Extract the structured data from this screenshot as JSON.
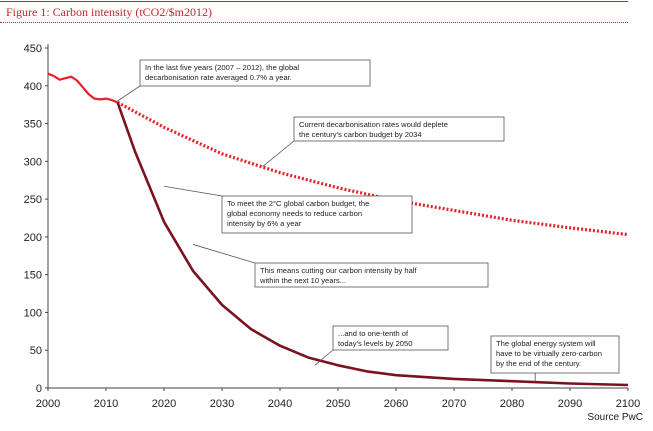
{
  "figure_title": "Figure 1: Carbon intensity (tCO2/$m2012)",
  "source": "Source PwC",
  "colors": {
    "title_red": "#c0272d",
    "historical_line": "#e8202a",
    "current_rate_line": "#e8202a",
    "required_path_line": "#7a1220",
    "box_border": "#555555"
  },
  "chart_data": {
    "type": "line",
    "title": "Figure 1: Carbon intensity (tCO2/$m2012)",
    "xlabel": "",
    "ylabel": "",
    "xlim": [
      2000,
      2100
    ],
    "ylim": [
      0,
      450
    ],
    "xticks": [
      2000,
      2010,
      2020,
      2030,
      2040,
      2050,
      2060,
      2070,
      2080,
      2090,
      2100
    ],
    "yticks": [
      0,
      50,
      100,
      150,
      200,
      250,
      300,
      350,
      400,
      450
    ],
    "grid": false,
    "legend": "none",
    "series": [
      {
        "style": "solid",
        "x": [
          2000,
          2001,
          2002,
          2003,
          2004,
          2005,
          2006,
          2007,
          2008,
          2009,
          2010,
          2011,
          2012
        ],
        "y": [
          416,
          413,
          408,
          410,
          412,
          407,
          398,
          389,
          383,
          382,
          383,
          381,
          378
        ]
      },
      {
        "style": "dotted",
        "x": [
          2012,
          2020,
          2030,
          2040,
          2050,
          2060,
          2070,
          2080,
          2090,
          2100
        ],
        "y": [
          378,
          345,
          310,
          285,
          265,
          248,
          235,
          222,
          212,
          203
        ]
      },
      {
        "style": "solid",
        "x": [
          2012,
          2015,
          2020,
          2025,
          2030,
          2035,
          2040,
          2045,
          2050,
          2055,
          2060,
          2070,
          2080,
          2090,
          2100
        ],
        "y": [
          378,
          313,
          220,
          155,
          110,
          78,
          56,
          40,
          30,
          22,
          17,
          12,
          9,
          6,
          4
        ]
      }
    ],
    "annotations": [
      {
        "lines": [
          "In the last five years (2007 – 2012), the global",
          "decarbonisation rate averaged 0.7% a year."
        ],
        "point_to": [
          2012,
          380
        ]
      },
      {
        "lines": [
          "Current decarbonisation rates would deplete",
          "the century's carbon budget by 2034"
        ],
        "point_to": [
          2037,
          293
        ]
      },
      {
        "lines": [
          "To meet the 2°C global carbon budget, the",
          "global economy needs to reduce carbon",
          "intensity by 6% a year"
        ],
        "point_to": [
          2020,
          267
        ]
      },
      {
        "lines": [
          "This means cutting our carbon intensity by half",
          "within the next 10 years..."
        ],
        "point_to": [
          2025,
          190
        ]
      },
      {
        "lines": [
          "...and to one-tenth of",
          "today's levels by 2050"
        ],
        "point_to": [
          2046,
          30
        ]
      },
      {
        "lines": [
          "The global energy system will",
          "have to be virtually zero-carbon",
          "by the end of the century."
        ],
        "point_to": [
          2084,
          8
        ]
      }
    ]
  }
}
